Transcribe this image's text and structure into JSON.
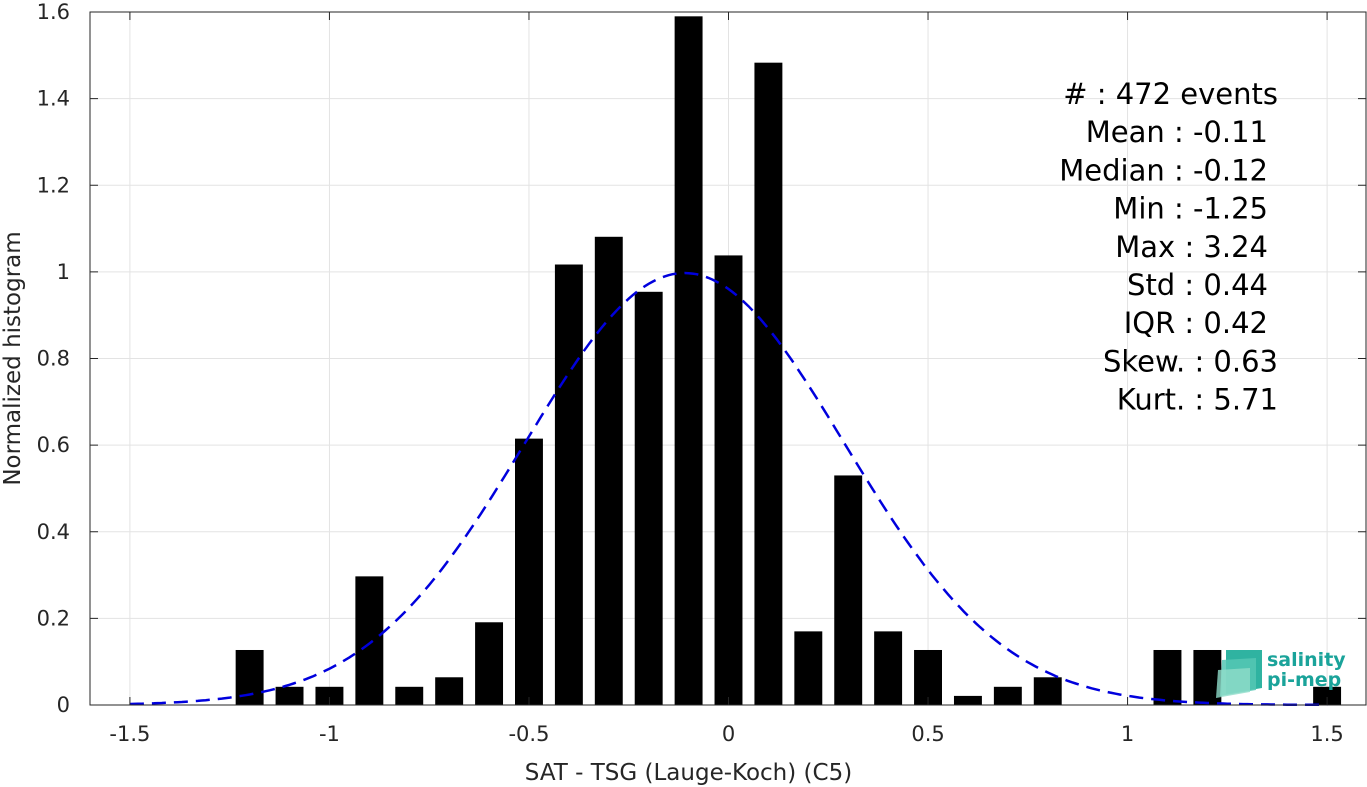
{
  "chart_data": {
    "type": "bar",
    "xlabel": "SAT - TSG (Lauge-Koch) (C5)",
    "ylabel": "Normalized histogram",
    "xlim": [
      -1.6,
      1.6
    ],
    "ylim": [
      0,
      1.6
    ],
    "xticks": [
      -1.5,
      -1,
      -0.5,
      0,
      0.5,
      1,
      1.5
    ],
    "xtick_labels": [
      "-1.5",
      "-1",
      "-0.5",
      "0",
      "0.5",
      "1",
      "1.5"
    ],
    "yticks": [
      0,
      0.2,
      0.4,
      0.6,
      0.8,
      1,
      1.2,
      1.4,
      1.6
    ],
    "ytick_labels": [
      "0",
      "0.2",
      "0.4",
      "0.6",
      "0.8",
      "1",
      "1.2",
      "1.4",
      "1.6"
    ],
    "grid": true,
    "bar_width": 0.07,
    "bar_color": "#000000",
    "bins": [
      -1.2,
      -1.1,
      -1.0,
      -0.9,
      -0.8,
      -0.7,
      -0.6,
      -0.5,
      -0.4,
      -0.3,
      -0.2,
      -0.1,
      0.0,
      0.1,
      0.2,
      0.3,
      0.4,
      0.5,
      0.6,
      0.7,
      0.8,
      1.1,
      1.2,
      1.5
    ],
    "values": [
      0.127,
      0.042,
      0.042,
      0.297,
      0.042,
      0.064,
      0.191,
      0.615,
      1.017,
      1.081,
      0.954,
      1.59,
      1.038,
      1.483,
      0.17,
      0.53,
      0.17,
      0.127,
      0.021,
      0.042,
      0.064,
      0.127,
      0.127,
      0.042
    ],
    "fit_curve": {
      "style": "dashed",
      "color": "#0000dd",
      "mean": -0.11,
      "std": 0.4,
      "x_range": [
        -1.5,
        1.5
      ]
    },
    "stats_lines": [
      "#  : 472 events",
      "Mean : -0.11",
      "Median : -0.12",
      "Min : -1.25",
      "Max : 3.24",
      "Std : 0.44",
      "IQR : 0.42",
      "Skew. : 0.63",
      "Kurt. : 5.71"
    ]
  },
  "logo": {
    "line1": "salinity",
    "line2": "pi-mep",
    "icon": "wave-layers-icon"
  }
}
